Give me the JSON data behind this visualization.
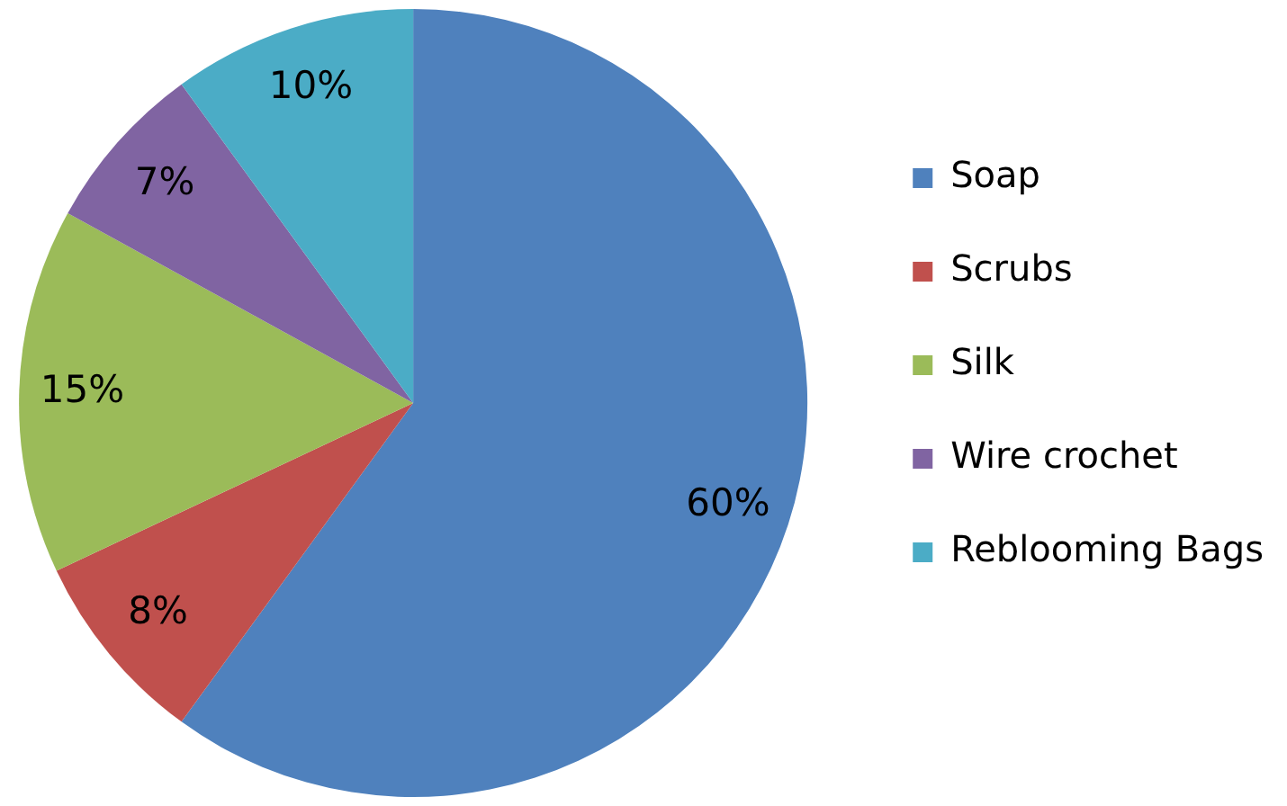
{
  "chart_data": {
    "type": "pie",
    "categories": [
      "Soap",
      "Scrubs",
      "Silk",
      "Wire crochet",
      "Reblooming Bags"
    ],
    "values": [
      60,
      8,
      15,
      7,
      10
    ],
    "colors": [
      "#4f81bd",
      "#c0504d",
      "#9bbb59",
      "#8064a2",
      "#4bacc6"
    ],
    "value_labels": [
      "60%",
      "8%",
      "15%",
      "7%",
      "10%"
    ],
    "legend": "right"
  }
}
